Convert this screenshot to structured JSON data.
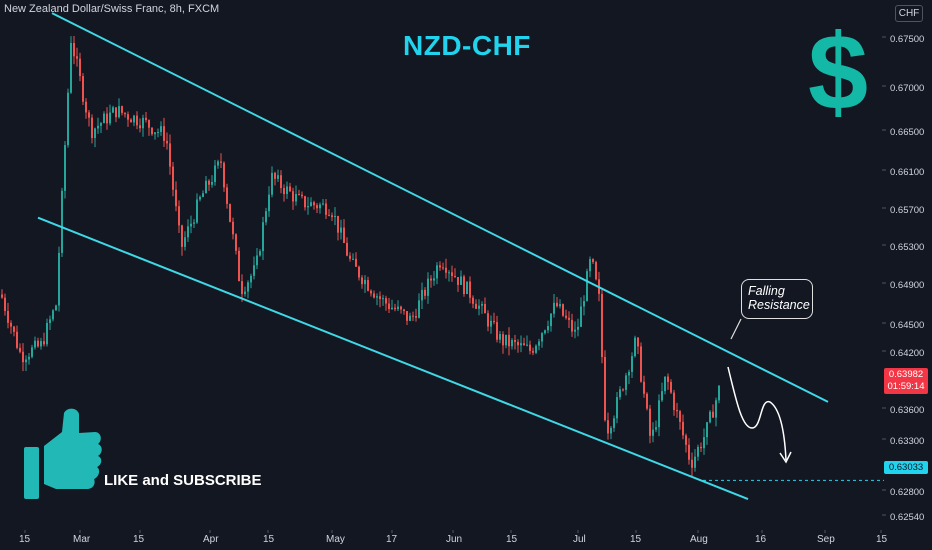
{
  "header": {
    "symbol_title": "New Zealand Dollar/Swiss Franc, 8h, FXCM",
    "currency_badge": "CHF"
  },
  "annotations": {
    "main_title": "NZD-CHF",
    "dollar_sign": "$",
    "callout_line1": "Falling",
    "callout_line2": "Resistance",
    "like_subscribe": "LIKE and SUBSCRIBE"
  },
  "price_axis": {
    "labels": [
      "0.67500",
      "0.67000",
      "0.66500",
      "0.66100",
      "0.65700",
      "0.65300",
      "0.64900",
      "0.64500",
      "0.64200",
      "0.63600",
      "0.63300",
      "0.62800",
      "0.62540"
    ],
    "current_price": "0.63982",
    "countdown": "01:59:14",
    "support_price": "0.63033"
  },
  "time_axis": {
    "labels": [
      "15",
      "Mar",
      "15",
      "Apr",
      "15",
      "May",
      "17",
      "Jun",
      "15",
      "Jul",
      "15",
      "Aug",
      "16",
      "Sep",
      "15"
    ]
  },
  "colors": {
    "background": "#131722",
    "up_candle": "#26a69a",
    "down_candle": "#ef5350",
    "channel_lines": "#3fd8e6",
    "title": "#22d3ee",
    "dollar": "#14b8a6",
    "price_tag": "#f23645"
  },
  "chart_data": {
    "type": "candlestick",
    "symbol": "NZDCHF",
    "timeframe": "8h",
    "ylim": [
      0.6245,
      0.6765
    ],
    "x_ticks": [
      "15",
      "Mar",
      "15",
      "Apr",
      "15",
      "May",
      "17",
      "Jun",
      "15",
      "Jul",
      "15",
      "Aug",
      "16",
      "Sep",
      "15"
    ],
    "trend_path_x": [
      0,
      20,
      40,
      55,
      70,
      90,
      115,
      140,
      165,
      180,
      200,
      220,
      240,
      255,
      270,
      300,
      330,
      350,
      380,
      410,
      440,
      470,
      500,
      530,
      555,
      575,
      590,
      598,
      605,
      615,
      635,
      650,
      665,
      690,
      705,
      720
    ],
    "trend_path_y": [
      0.6485,
      0.6425,
      0.6435,
      0.6475,
      0.6735,
      0.6645,
      0.6665,
      0.6655,
      0.664,
      0.653,
      0.658,
      0.6615,
      0.649,
      0.651,
      0.66,
      0.6575,
      0.657,
      0.6515,
      0.648,
      0.646,
      0.652,
      0.6485,
      0.644,
      0.643,
      0.6475,
      0.6445,
      0.652,
      0.648,
      0.635,
      0.6375,
      0.644,
      0.634,
      0.6405,
      0.632,
      0.635,
      0.6398
    ],
    "falling_resistance": {
      "start": [
        52,
        0.676
      ],
      "end": [
        828,
        0.638
      ]
    },
    "support_line": {
      "start": [
        38,
        0.656
      ],
      "end": [
        748,
        0.6285
      ]
    },
    "support_level": 0.63033,
    "current_price": 0.63982
  }
}
